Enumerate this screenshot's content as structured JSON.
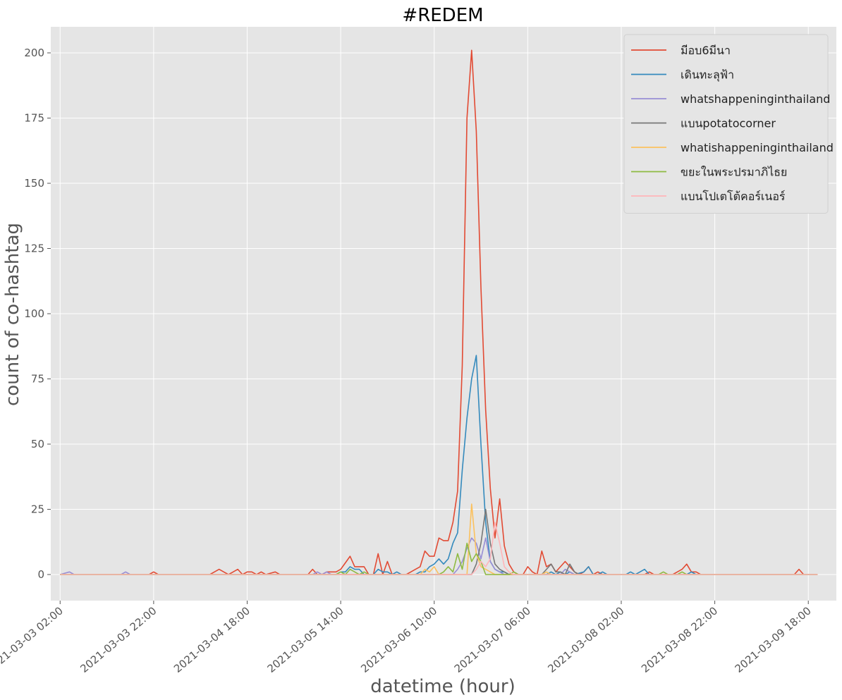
{
  "chart_data": {
    "type": "line",
    "title": "#REDEM",
    "xlabel": "datetime (hour)",
    "ylabel": "count of co-hashtag",
    "ylim": [
      -10,
      210
    ],
    "xlim": [
      "2021-03-03 00:00",
      "2021-03-10 00:00"
    ],
    "yticks": [
      0,
      25,
      50,
      75,
      100,
      125,
      150,
      175,
      200
    ],
    "xticks": [
      "2021-03-03 02:00",
      "2021-03-03 22:00",
      "2021-03-04 18:00",
      "2021-03-05 14:00",
      "2021-03-06 10:00",
      "2021-03-07 06:00",
      "2021-03-08 02:00",
      "2021-03-08 22:00",
      "2021-03-09 18:00"
    ],
    "grid": true,
    "legend_position": "top-right",
    "x_start": "2021-03-03 02:00",
    "x_end": "2021-03-09 20:00",
    "series": [
      {
        "name": "มีอบ6มีนา",
        "color": "#E24A33",
        "points": [
          [
            "2021-03-03 02:00",
            0
          ],
          [
            "2021-03-03 21:00",
            0
          ],
          [
            "2021-03-03 22:00",
            1
          ],
          [
            "2021-03-03 23:00",
            0
          ],
          [
            "2021-03-04 10:00",
            0
          ],
          [
            "2021-03-04 12:00",
            2
          ],
          [
            "2021-03-04 14:00",
            0
          ],
          [
            "2021-03-04 16:00",
            2
          ],
          [
            "2021-03-04 17:00",
            0
          ],
          [
            "2021-03-04 18:00",
            1
          ],
          [
            "2021-03-04 19:00",
            1
          ],
          [
            "2021-03-04 20:00",
            0
          ],
          [
            "2021-03-04 21:00",
            1
          ],
          [
            "2021-03-04 22:00",
            0
          ],
          [
            "2021-03-05 00:00",
            1
          ],
          [
            "2021-03-05 01:00",
            0
          ],
          [
            "2021-03-05 07:00",
            0
          ],
          [
            "2021-03-05 08:00",
            2
          ],
          [
            "2021-03-05 09:00",
            0
          ],
          [
            "2021-03-05 10:00",
            0
          ],
          [
            "2021-03-05 11:00",
            1
          ],
          [
            "2021-03-05 12:00",
            1
          ],
          [
            "2021-03-05 13:00",
            1
          ],
          [
            "2021-03-05 14:00",
            2
          ],
          [
            "2021-03-05 16:00",
            7
          ],
          [
            "2021-03-05 17:00",
            3
          ],
          [
            "2021-03-05 19:00",
            3
          ],
          [
            "2021-03-05 20:00",
            0
          ],
          [
            "2021-03-05 21:00",
            0
          ],
          [
            "2021-03-05 22:00",
            8
          ],
          [
            "2021-03-05 23:00",
            0
          ],
          [
            "2021-03-06 00:00",
            5
          ],
          [
            "2021-03-06 01:00",
            0
          ],
          [
            "2021-03-06 04:00",
            0
          ],
          [
            "2021-03-06 06:00",
            2
          ],
          [
            "2021-03-06 07:00",
            3
          ],
          [
            "2021-03-06 08:00",
            9
          ],
          [
            "2021-03-06 09:00",
            7
          ],
          [
            "2021-03-06 10:00",
            7
          ],
          [
            "2021-03-06 11:00",
            14
          ],
          [
            "2021-03-06 12:00",
            13
          ],
          [
            "2021-03-06 13:00",
            13
          ],
          [
            "2021-03-06 14:00",
            20
          ],
          [
            "2021-03-06 15:00",
            32
          ],
          [
            "2021-03-06 16:00",
            80
          ],
          [
            "2021-03-06 17:00",
            175
          ],
          [
            "2021-03-06 18:00",
            201
          ],
          [
            "2021-03-06 19:00",
            170
          ],
          [
            "2021-03-06 20:00",
            110
          ],
          [
            "2021-03-06 21:00",
            63
          ],
          [
            "2021-03-06 22:00",
            33
          ],
          [
            "2021-03-06 23:00",
            14
          ],
          [
            "2021-03-07 00:00",
            29
          ],
          [
            "2021-03-07 01:00",
            11
          ],
          [
            "2021-03-07 02:00",
            4
          ],
          [
            "2021-03-07 03:00",
            1
          ],
          [
            "2021-03-07 04:00",
            0
          ],
          [
            "2021-03-07 05:00",
            0
          ],
          [
            "2021-03-07 06:00",
            3
          ],
          [
            "2021-03-07 07:00",
            1
          ],
          [
            "2021-03-07 08:00",
            0
          ],
          [
            "2021-03-07 09:00",
            9
          ],
          [
            "2021-03-07 10:00",
            3
          ],
          [
            "2021-03-07 11:00",
            4
          ],
          [
            "2021-03-07 12:00",
            1
          ],
          [
            "2021-03-07 13:00",
            3
          ],
          [
            "2021-03-07 14:00",
            5
          ],
          [
            "2021-03-07 15:00",
            3
          ],
          [
            "2021-03-07 16:00",
            1
          ],
          [
            "2021-03-07 17:00",
            0
          ],
          [
            "2021-03-07 18:00",
            1
          ],
          [
            "2021-03-07 19:00",
            3
          ],
          [
            "2021-03-07 20:00",
            0
          ],
          [
            "2021-03-07 21:00",
            1
          ],
          [
            "2021-03-07 22:00",
            0
          ],
          [
            "2021-03-08 07:00",
            0
          ],
          [
            "2021-03-08 08:00",
            1
          ],
          [
            "2021-03-08 09:00",
            0
          ],
          [
            "2021-03-08 13:00",
            0
          ],
          [
            "2021-03-08 15:00",
            2
          ],
          [
            "2021-03-08 16:00",
            4
          ],
          [
            "2021-03-08 17:00",
            1
          ],
          [
            "2021-03-08 18:00",
            1
          ],
          [
            "2021-03-08 19:00",
            0
          ],
          [
            "2021-03-09 15:00",
            0
          ],
          [
            "2021-03-09 16:00",
            2
          ],
          [
            "2021-03-09 17:00",
            0
          ],
          [
            "2021-03-09 20:00",
            0
          ]
        ]
      },
      {
        "name": "เดินทะลุฟ้า",
        "color": "#348ABD",
        "points": [
          [
            "2021-03-03 02:00",
            0
          ],
          [
            "2021-03-05 13:00",
            0
          ],
          [
            "2021-03-05 14:00",
            1
          ],
          [
            "2021-03-05 15:00",
            1
          ],
          [
            "2021-03-05 16:00",
            3
          ],
          [
            "2021-03-05 17:00",
            2
          ],
          [
            "2021-03-05 18:00",
            2
          ],
          [
            "2021-03-05 19:00",
            0
          ],
          [
            "2021-03-05 21:00",
            0
          ],
          [
            "2021-03-05 22:00",
            2
          ],
          [
            "2021-03-05 23:00",
            1
          ],
          [
            "2021-03-06 00:00",
            1
          ],
          [
            "2021-03-06 01:00",
            0
          ],
          [
            "2021-03-06 02:00",
            1
          ],
          [
            "2021-03-06 03:00",
            0
          ],
          [
            "2021-03-06 06:00",
            0
          ],
          [
            "2021-03-06 07:00",
            1
          ],
          [
            "2021-03-06 08:00",
            1
          ],
          [
            "2021-03-06 09:00",
            3
          ],
          [
            "2021-03-06 10:00",
            4
          ],
          [
            "2021-03-06 11:00",
            6
          ],
          [
            "2021-03-06 12:00",
            4
          ],
          [
            "2021-03-06 13:00",
            6
          ],
          [
            "2021-03-06 14:00",
            12
          ],
          [
            "2021-03-06 15:00",
            16
          ],
          [
            "2021-03-06 16:00",
            40
          ],
          [
            "2021-03-06 17:00",
            60
          ],
          [
            "2021-03-06 18:00",
            75
          ],
          [
            "2021-03-06 19:00",
            84
          ],
          [
            "2021-03-06 20:00",
            50
          ],
          [
            "2021-03-06 21:00",
            20
          ],
          [
            "2021-03-06 22:00",
            5
          ],
          [
            "2021-03-06 23:00",
            2
          ],
          [
            "2021-03-07 00:00",
            1
          ],
          [
            "2021-03-07 01:00",
            1
          ],
          [
            "2021-03-07 02:00",
            0
          ],
          [
            "2021-03-07 10:00",
            0
          ],
          [
            "2021-03-07 11:00",
            1
          ],
          [
            "2021-03-07 12:00",
            0
          ],
          [
            "2021-03-07 13:00",
            1
          ],
          [
            "2021-03-07 14:00",
            0
          ],
          [
            "2021-03-07 15:00",
            1
          ],
          [
            "2021-03-07 16:00",
            0
          ],
          [
            "2021-03-07 18:00",
            1
          ],
          [
            "2021-03-07 19:00",
            3
          ],
          [
            "2021-03-07 20:00",
            0
          ],
          [
            "2021-03-07 21:00",
            0
          ],
          [
            "2021-03-07 22:00",
            1
          ],
          [
            "2021-03-07 23:00",
            0
          ],
          [
            "2021-03-08 03:00",
            0
          ],
          [
            "2021-03-08 04:00",
            1
          ],
          [
            "2021-03-08 05:00",
            0
          ],
          [
            "2021-03-08 06:00",
            1
          ],
          [
            "2021-03-08 07:00",
            2
          ],
          [
            "2021-03-08 08:00",
            0
          ],
          [
            "2021-03-08 16:00",
            0
          ],
          [
            "2021-03-08 17:00",
            1
          ],
          [
            "2021-03-08 18:00",
            0
          ],
          [
            "2021-03-09 20:00",
            0
          ]
        ]
      },
      {
        "name": "whatshappeninginthailand",
        "color": "#988ED5",
        "points": [
          [
            "2021-03-03 02:00",
            0
          ],
          [
            "2021-03-03 04:00",
            1
          ],
          [
            "2021-03-03 05:00",
            0
          ],
          [
            "2021-03-03 15:00",
            0
          ],
          [
            "2021-03-03 16:00",
            1
          ],
          [
            "2021-03-03 17:00",
            0
          ],
          [
            "2021-03-05 08:00",
            0
          ],
          [
            "2021-03-05 09:00",
            1
          ],
          [
            "2021-03-05 10:00",
            0
          ],
          [
            "2021-03-05 11:00",
            1
          ],
          [
            "2021-03-05 12:00",
            0
          ],
          [
            "2021-03-06 14:00",
            0
          ],
          [
            "2021-03-06 15:00",
            2
          ],
          [
            "2021-03-06 16:00",
            5
          ],
          [
            "2021-03-06 17:00",
            10
          ],
          [
            "2021-03-06 18:00",
            14
          ],
          [
            "2021-03-06 19:00",
            12
          ],
          [
            "2021-03-06 20:00",
            6
          ],
          [
            "2021-03-06 21:00",
            14
          ],
          [
            "2021-03-06 22:00",
            5
          ],
          [
            "2021-03-06 23:00",
            2
          ],
          [
            "2021-03-07 00:00",
            1
          ],
          [
            "2021-03-07 01:00",
            0
          ],
          [
            "2021-03-07 13:00",
            0
          ],
          [
            "2021-03-07 14:00",
            2
          ],
          [
            "2021-03-07 15:00",
            1
          ],
          [
            "2021-03-07 16:00",
            0
          ],
          [
            "2021-03-09 20:00",
            0
          ]
        ]
      },
      {
        "name": "แบนpotatocorner",
        "color": "#777777",
        "points": [
          [
            "2021-03-03 02:00",
            0
          ],
          [
            "2021-03-06 18:00",
            0
          ],
          [
            "2021-03-06 19:00",
            4
          ],
          [
            "2021-03-06 20:00",
            12
          ],
          [
            "2021-03-06 21:00",
            25
          ],
          [
            "2021-03-06 22:00",
            12
          ],
          [
            "2021-03-06 23:00",
            4
          ],
          [
            "2021-03-07 00:00",
            2
          ],
          [
            "2021-03-07 01:00",
            1
          ],
          [
            "2021-03-07 02:00",
            0
          ],
          [
            "2021-03-07 09:00",
            0
          ],
          [
            "2021-03-07 10:00",
            2
          ],
          [
            "2021-03-07 11:00",
            4
          ],
          [
            "2021-03-07 12:00",
            1
          ],
          [
            "2021-03-07 13:00",
            1
          ],
          [
            "2021-03-07 14:00",
            0
          ],
          [
            "2021-03-07 15:00",
            4
          ],
          [
            "2021-03-07 16:00",
            1
          ],
          [
            "2021-03-07 17:00",
            0
          ],
          [
            "2021-03-09 20:00",
            0
          ]
        ]
      },
      {
        "name": "whatishappeninginthailand",
        "color": "#FBC15E",
        "points": [
          [
            "2021-03-03 02:00",
            0
          ],
          [
            "2021-03-06 07:00",
            0
          ],
          [
            "2021-03-06 08:00",
            2
          ],
          [
            "2021-03-06 09:00",
            1
          ],
          [
            "2021-03-06 10:00",
            3
          ],
          [
            "2021-03-06 11:00",
            0
          ],
          [
            "2021-03-06 17:00",
            0
          ],
          [
            "2021-03-06 18:00",
            27
          ],
          [
            "2021-03-06 19:00",
            8
          ],
          [
            "2021-03-06 20:00",
            3
          ],
          [
            "2021-03-06 21:00",
            2
          ],
          [
            "2021-03-06 22:00",
            1
          ],
          [
            "2021-03-06 23:00",
            0
          ],
          [
            "2021-03-07 09:00",
            0
          ],
          [
            "2021-03-07 10:00",
            1
          ],
          [
            "2021-03-07 11:00",
            0
          ],
          [
            "2021-03-09 20:00",
            0
          ]
        ]
      },
      {
        "name": "ขยะในพระปรมาภิไธย",
        "color": "#8EBA42",
        "points": [
          [
            "2021-03-03 02:00",
            0
          ],
          [
            "2021-03-05 13:00",
            0
          ],
          [
            "2021-03-05 14:00",
            1
          ],
          [
            "2021-03-05 15:00",
            0
          ],
          [
            "2021-03-05 16:00",
            2
          ],
          [
            "2021-03-05 17:00",
            1
          ],
          [
            "2021-03-05 18:00",
            0
          ],
          [
            "2021-03-05 19:00",
            1
          ],
          [
            "2021-03-05 20:00",
            0
          ],
          [
            "2021-03-06 11:00",
            0
          ],
          [
            "2021-03-06 12:00",
            1
          ],
          [
            "2021-03-06 13:00",
            3
          ],
          [
            "2021-03-06 14:00",
            1
          ],
          [
            "2021-03-06 15:00",
            8
          ],
          [
            "2021-03-06 16:00",
            2
          ],
          [
            "2021-03-06 17:00",
            12
          ],
          [
            "2021-03-06 18:00",
            5
          ],
          [
            "2021-03-06 19:00",
            8
          ],
          [
            "2021-03-06 20:00",
            5
          ],
          [
            "2021-03-06 21:00",
            0
          ],
          [
            "2021-03-07 02:00",
            0
          ],
          [
            "2021-03-07 03:00",
            1
          ],
          [
            "2021-03-07 04:00",
            0
          ],
          [
            "2021-03-08 10:00",
            0
          ],
          [
            "2021-03-08 11:00",
            1
          ],
          [
            "2021-03-08 12:00",
            0
          ],
          [
            "2021-03-08 14:00",
            0
          ],
          [
            "2021-03-08 15:00",
            1
          ],
          [
            "2021-03-08 16:00",
            0
          ],
          [
            "2021-03-09 20:00",
            0
          ]
        ]
      },
      {
        "name": "แบนโปเตโต้คอร์เนอร์",
        "color": "#FFB5B8",
        "points": [
          [
            "2021-03-03 02:00",
            0
          ],
          [
            "2021-03-06 18:00",
            0
          ],
          [
            "2021-03-06 19:00",
            2
          ],
          [
            "2021-03-06 20:00",
            5
          ],
          [
            "2021-03-06 21:00",
            3
          ],
          [
            "2021-03-06 22:00",
            6
          ],
          [
            "2021-03-06 23:00",
            20
          ],
          [
            "2021-03-07 00:00",
            12
          ],
          [
            "2021-03-07 01:00",
            3
          ],
          [
            "2021-03-07 02:00",
            1
          ],
          [
            "2021-03-07 03:00",
            0
          ],
          [
            "2021-03-09 20:00",
            0
          ]
        ]
      }
    ]
  }
}
